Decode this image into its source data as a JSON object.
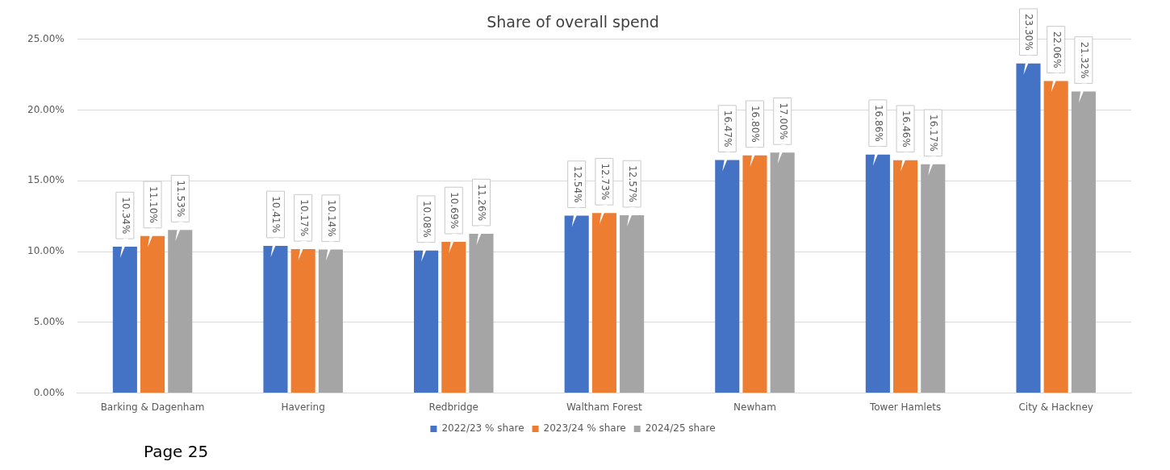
{
  "chart_data": {
    "type": "bar",
    "title": "Share of overall spend",
    "categories": [
      "Barking & Dagenham",
      "Havering",
      "Redbridge",
      "Waltham Forest",
      "Newham",
      "Tower Hamlets",
      "City & Hackney"
    ],
    "series": [
      {
        "name": "2022/23 % share",
        "color": "#4472c4",
        "values": [
          10.34,
          10.41,
          10.08,
          12.54,
          16.47,
          16.86,
          23.3
        ],
        "value_labels": [
          "10.34%",
          "10.41%",
          "10.08%",
          "12.54%",
          "16.47%",
          "16.86%",
          "23.30%"
        ]
      },
      {
        "name": "2023/24 % share",
        "color": "#ed7d31",
        "values": [
          11.1,
          10.17,
          10.69,
          12.73,
          16.8,
          16.46,
          22.06
        ],
        "value_labels": [
          "11.10%",
          "10.17%",
          "10.69%",
          "12.73%",
          "16.80%",
          "16.46%",
          "22.06%"
        ]
      },
      {
        "name": "2024/25 share",
        "color": "#a5a5a5",
        "values": [
          11.53,
          10.14,
          11.26,
          12.57,
          17.0,
          16.17,
          21.32
        ],
        "value_labels": [
          "11.53%",
          "10.14%",
          "11.26%",
          "12.57%",
          "17.00%",
          "16.17%",
          "21.32%"
        ]
      }
    ],
    "ylim": [
      0,
      25
    ],
    "yticks": [
      {
        "value": 0,
        "label": "0.00%"
      },
      {
        "value": 5,
        "label": "5.00%"
      },
      {
        "value": 10,
        "label": "10.00%"
      },
      {
        "value": 15,
        "label": "15.00%"
      },
      {
        "value": 20,
        "label": "20.00%"
      },
      {
        "value": 25,
        "label": "25.00%"
      }
    ],
    "grid": "y",
    "legend": "bottom",
    "annotations": [
      "Page 25"
    ]
  }
}
